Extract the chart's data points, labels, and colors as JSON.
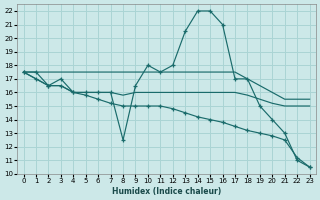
{
  "xlabel": "Humidex (Indice chaleur)",
  "bg_color": "#cce8e8",
  "grid_color": "#aad4d4",
  "line_color": "#1a6b6b",
  "xlim": [
    -0.5,
    23.5
  ],
  "ylim": [
    10,
    22.5
  ],
  "xticks": [
    0,
    1,
    2,
    3,
    4,
    5,
    6,
    7,
    8,
    9,
    10,
    11,
    12,
    13,
    14,
    15,
    16,
    17,
    18,
    19,
    20,
    21,
    22,
    23
  ],
  "yticks": [
    10,
    11,
    12,
    13,
    14,
    15,
    16,
    17,
    18,
    19,
    20,
    21,
    22
  ],
  "line1": {
    "x": [
      0,
      1,
      2,
      3,
      4,
      5,
      6,
      7,
      8,
      9,
      10,
      11,
      12,
      13,
      14,
      15,
      16,
      17,
      18,
      19,
      20,
      21,
      22,
      23
    ],
    "y": [
      17.5,
      17.5,
      16.5,
      17.0,
      16.0,
      16.0,
      16.0,
      16.0,
      12.5,
      16.5,
      18.0,
      17.5,
      18.0,
      20.5,
      22.0,
      22.0,
      21.0,
      17.0,
      17.0,
      15.0,
      14.0,
      13.0,
      11.0,
      10.5
    ]
  },
  "line2": {
    "x": [
      0,
      1,
      2,
      3,
      4,
      5,
      6,
      7,
      8,
      9,
      10,
      11,
      12,
      13,
      14,
      15,
      16,
      17,
      18,
      19,
      20,
      21,
      22,
      23
    ],
    "y": [
      17.5,
      17.5,
      17.5,
      17.5,
      17.5,
      17.5,
      17.5,
      17.5,
      17.5,
      17.5,
      17.5,
      17.5,
      17.5,
      17.5,
      17.5,
      17.5,
      17.5,
      17.5,
      17.0,
      16.5,
      16.0,
      15.5,
      15.5,
      15.5
    ]
  },
  "line3": {
    "x": [
      0,
      1,
      2,
      3,
      4,
      5,
      6,
      7,
      8,
      9,
      10,
      11,
      12,
      13,
      14,
      15,
      16,
      17,
      18,
      19,
      20,
      21,
      22,
      23
    ],
    "y": [
      17.5,
      17.0,
      16.5,
      16.5,
      16.0,
      16.0,
      16.0,
      16.0,
      15.8,
      16.0,
      16.0,
      16.0,
      16.0,
      16.0,
      16.0,
      16.0,
      16.0,
      16.0,
      15.8,
      15.5,
      15.2,
      15.0,
      15.0,
      15.0
    ]
  },
  "line4": {
    "x": [
      0,
      1,
      2,
      3,
      4,
      5,
      6,
      7,
      8,
      9,
      10,
      11,
      12,
      13,
      14,
      15,
      16,
      17,
      18,
      19,
      20,
      21,
      22,
      23
    ],
    "y": [
      17.5,
      17.0,
      16.5,
      16.5,
      16.0,
      15.8,
      15.5,
      15.2,
      15.0,
      15.0,
      15.0,
      15.0,
      14.8,
      14.5,
      14.2,
      14.0,
      13.8,
      13.5,
      13.2,
      13.0,
      12.8,
      12.5,
      11.2,
      10.5
    ]
  }
}
